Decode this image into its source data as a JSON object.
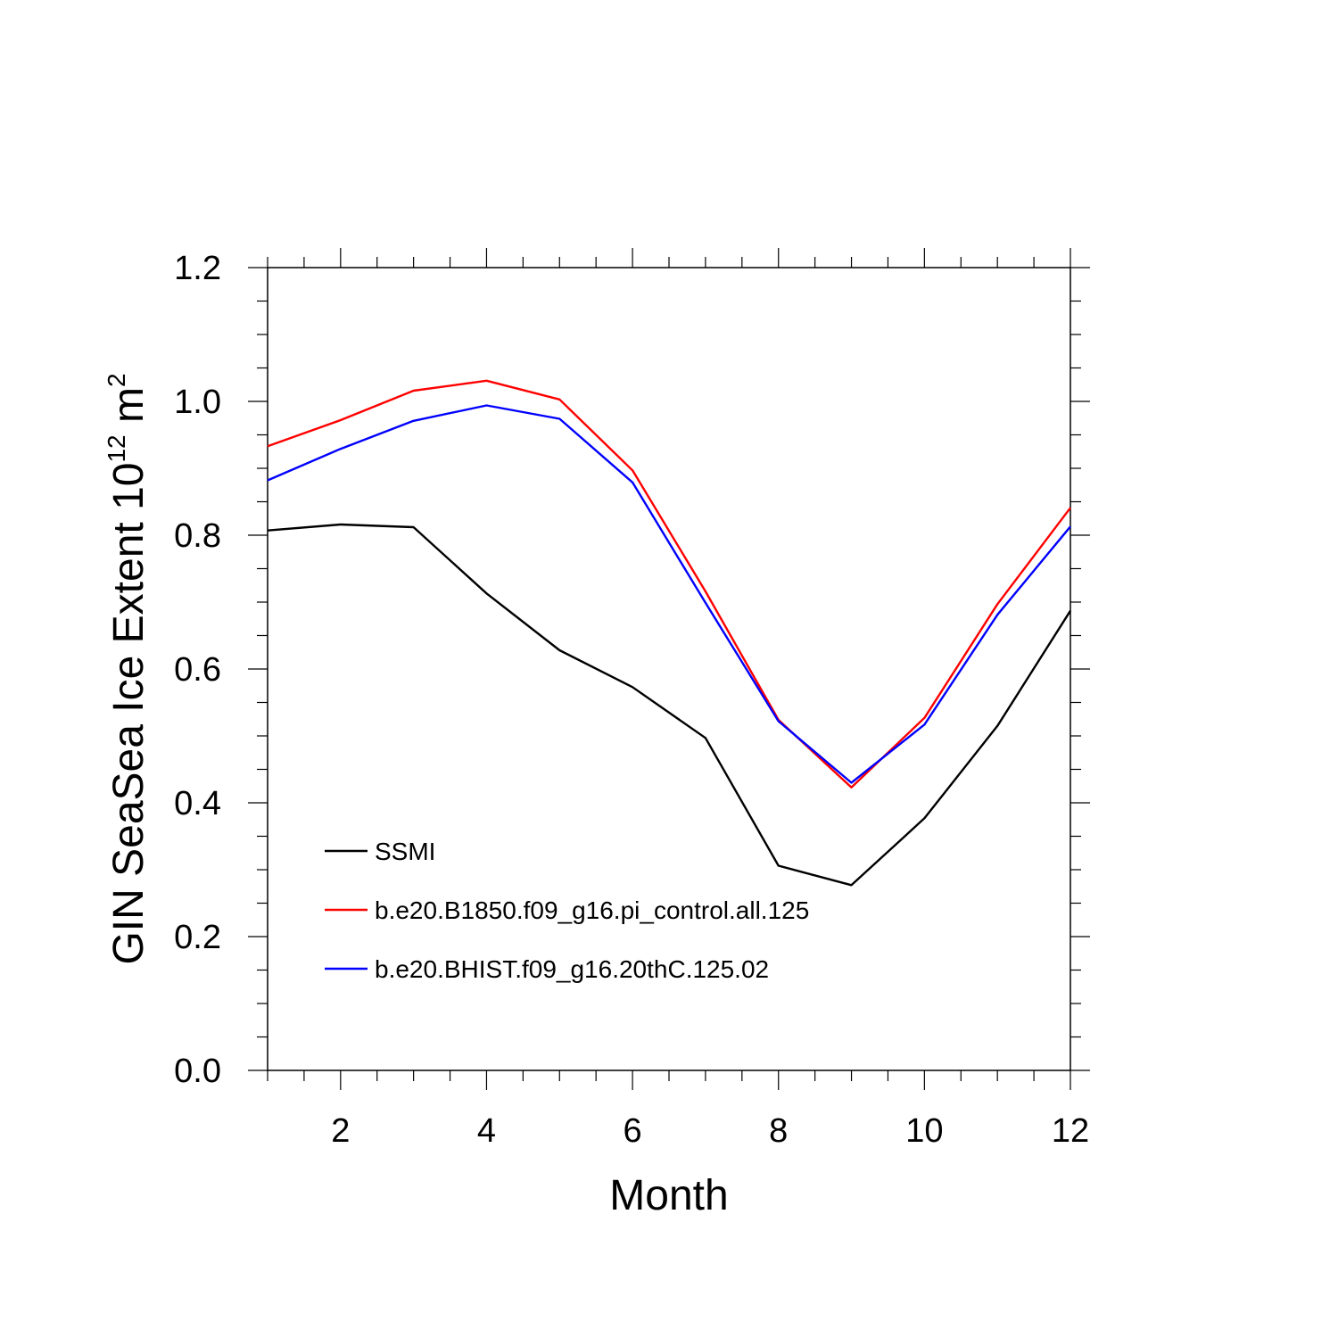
{
  "chart_data": {
    "type": "line",
    "xlabel": "Month",
    "ylabel_main": "GIN SeaSea Ice Extent 10",
    "ylabel_sup": "12",
    "ylabel_unit": " m",
    "ylabel_unit_sup": "2",
    "xlim": [
      1,
      12
    ],
    "ylim": [
      0.0,
      1.2
    ],
    "x_ticks": [
      2,
      4,
      6,
      8,
      10,
      12
    ],
    "x_tick_labels": [
      "2",
      "4",
      "6",
      "8",
      "10",
      "12"
    ],
    "y_ticks": [
      0.0,
      0.2,
      0.4,
      0.6,
      0.8,
      1.0,
      1.2
    ],
    "y_tick_labels": [
      "0.0",
      "0.2",
      "0.4",
      "0.6",
      "0.8",
      "1.0",
      "1.2"
    ],
    "grid": false,
    "legend_position": "bottom-left",
    "x": [
      1,
      2,
      3,
      4,
      5,
      6,
      7,
      8,
      9,
      10,
      11,
      12
    ],
    "series": [
      {
        "name": "SSMI",
        "color": "#000000",
        "values": [
          0.807,
          0.816,
          0.812,
          0.713,
          0.628,
          0.573,
          0.497,
          0.306,
          0.277,
          0.377,
          0.515,
          0.687
        ]
      },
      {
        "name": "b.e20.B1850.f09_g16.pi_control.all.125",
        "color": "#ff0000",
        "values": [
          0.933,
          0.972,
          1.016,
          1.031,
          1.003,
          0.897,
          0.716,
          0.524,
          0.423,
          0.527,
          0.697,
          0.841
        ]
      },
      {
        "name": "b.e20.BHIST.f09_g16.20thC.125.02",
        "color": "#0000ff",
        "values": [
          0.882,
          0.929,
          0.971,
          0.994,
          0.974,
          0.879,
          0.699,
          0.522,
          0.43,
          0.517,
          0.681,
          0.813
        ]
      }
    ]
  }
}
